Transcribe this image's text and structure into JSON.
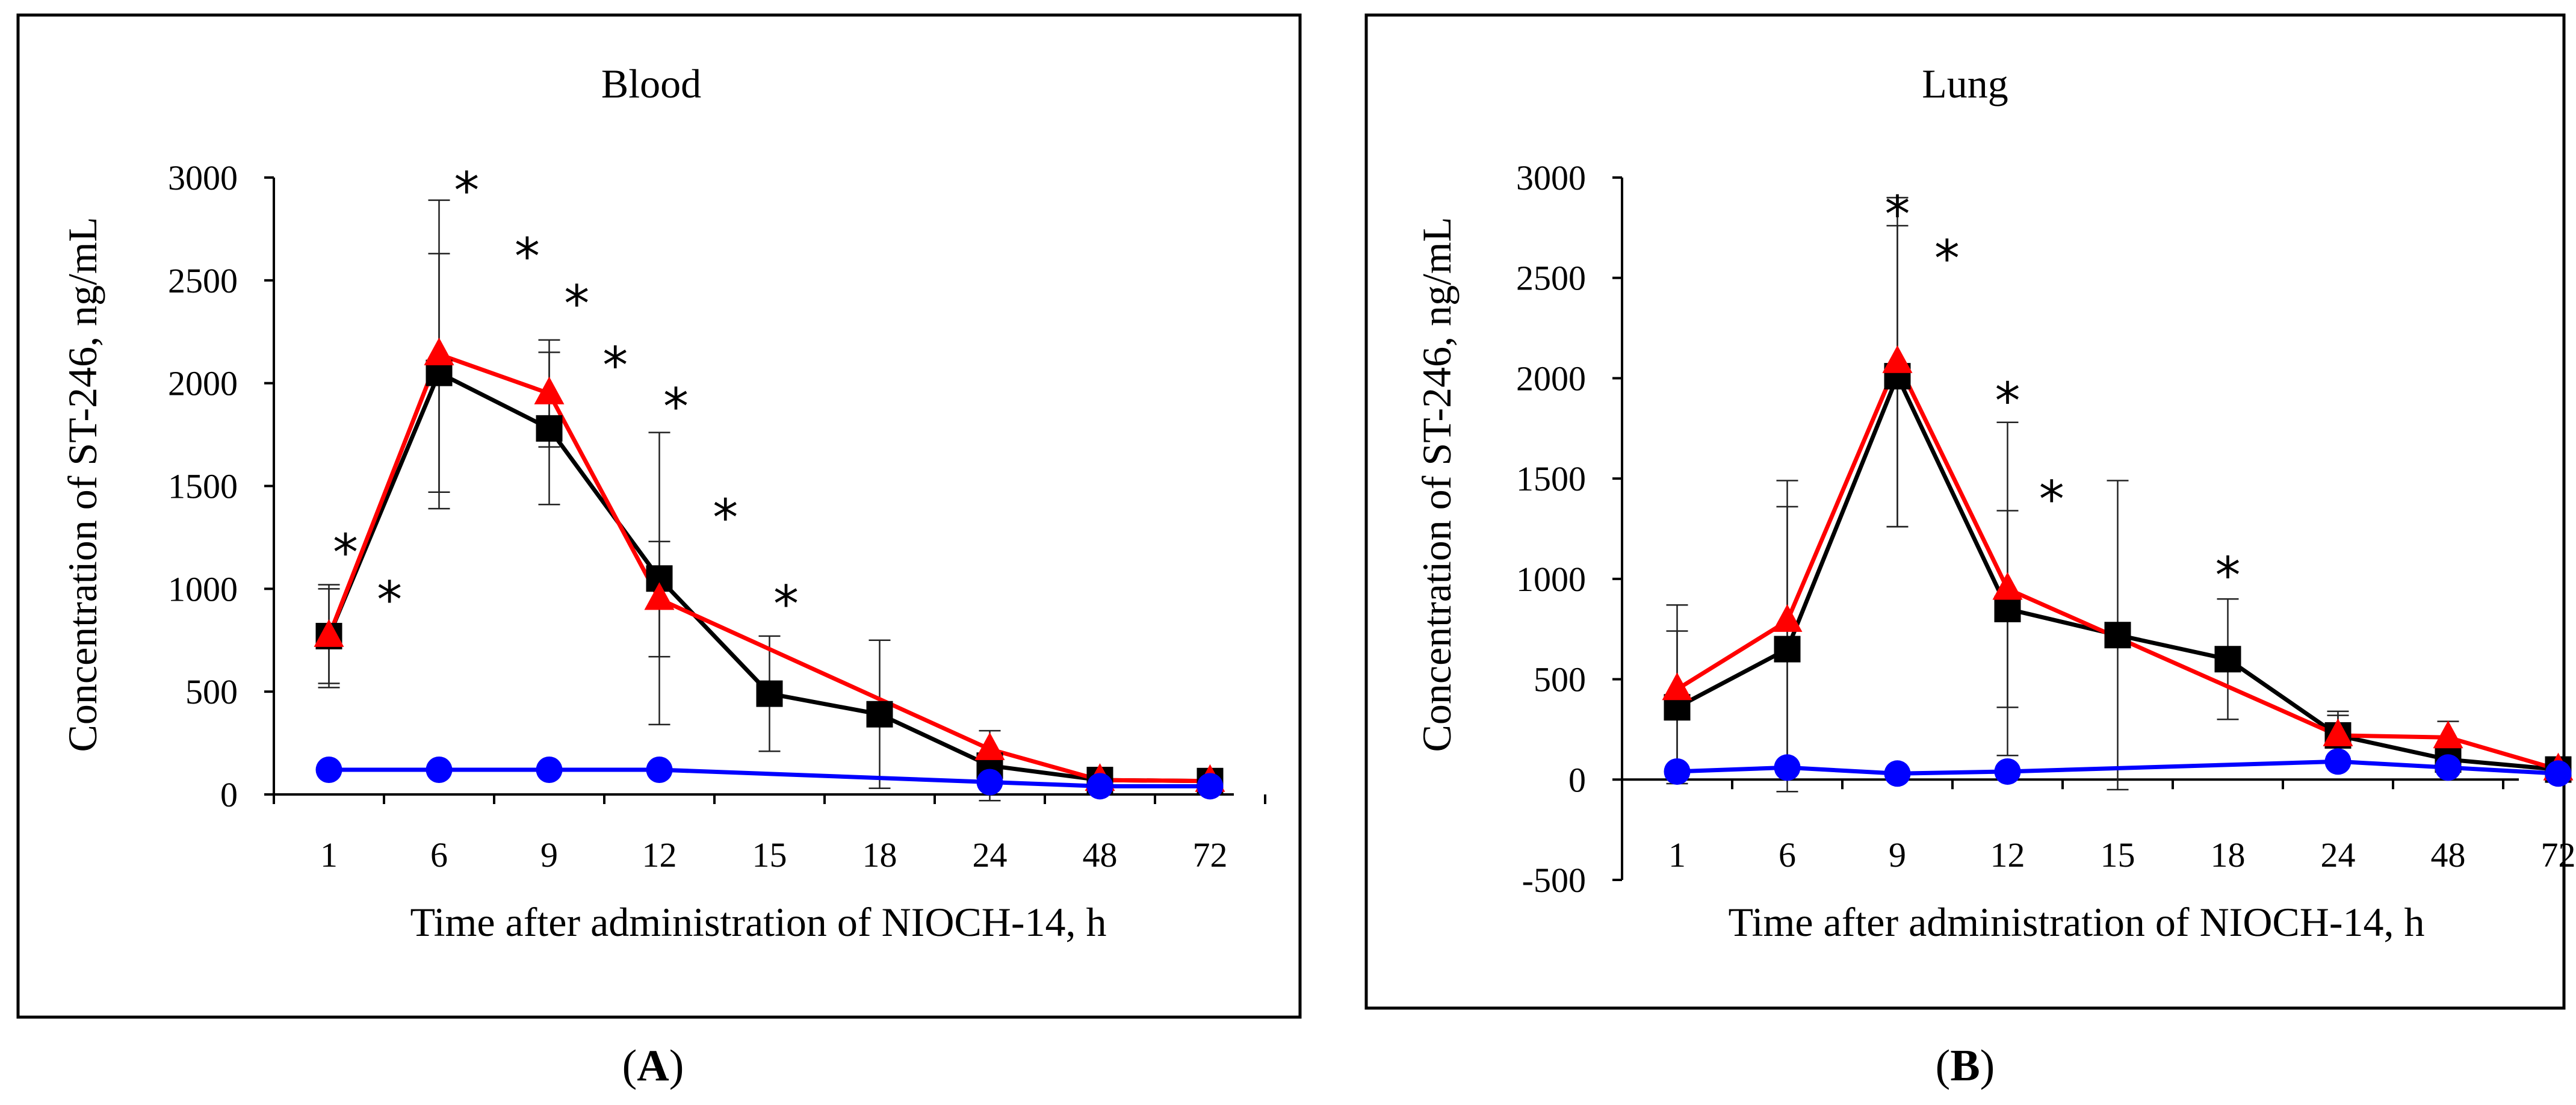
{
  "chart_data": [
    {
      "id": "A",
      "type": "line",
      "title": "Blood",
      "caption_letter": "A",
      "xlabel": "Time after administration of NIOCH-14, h",
      "ylabel": "Concentration of ST-246, ng/mL",
      "categories": [
        "1",
        "6",
        "9",
        "12",
        "15",
        "18",
        "24",
        "48",
        "72"
      ],
      "ylim": [
        0,
        3000
      ],
      "yticks": [
        0,
        500,
        1000,
        1500,
        2000,
        2500,
        3000
      ],
      "series": [
        {
          "name": "black-square",
          "color": "#000000",
          "marker": "square",
          "values": [
            770,
            2050,
            1780,
            1050,
            490,
            390,
            140,
            70,
            65
          ],
          "errors": [
            230,
            580,
            370,
            710,
            280,
            360,
            170,
            0,
            0
          ]
        },
        {
          "name": "red-triangle",
          "color": "#ff0000",
          "marker": "triangle",
          "values": [
            770,
            2140,
            1950,
            950,
            null,
            null,
            220,
            70,
            65
          ],
          "errors": [
            250,
            750,
            260,
            280,
            null,
            null,
            0,
            0,
            0
          ]
        },
        {
          "name": "blue-circle",
          "color": "#0000ff",
          "marker": "circle",
          "values": [
            120,
            120,
            120,
            120,
            null,
            null,
            60,
            40,
            40
          ],
          "errors": [
            0,
            0,
            0,
            0,
            null,
            null,
            0,
            0,
            0
          ]
        }
      ],
      "annotations": [
        {
          "text": "*",
          "x": 1.15,
          "y": 1180
        },
        {
          "text": "*",
          "x": 1.55,
          "y": 950
        },
        {
          "text": "*",
          "x": 2.25,
          "y": 2940
        },
        {
          "text": "*",
          "x": 2.8,
          "y": 2620
        },
        {
          "text": "*",
          "x": 3.25,
          "y": 2390
        },
        {
          "text": "*",
          "x": 3.6,
          "y": 2090
        },
        {
          "text": "*",
          "x": 4.15,
          "y": 1890
        },
        {
          "text": "*",
          "x": 4.6,
          "y": 1350
        },
        {
          "text": "*",
          "x": 5.15,
          "y": 930
        }
      ]
    },
    {
      "id": "B",
      "type": "line",
      "title": "Lung",
      "caption_letter": "B",
      "xlabel": "Time after administration of NIOCH-14, h",
      "ylabel": "Concentration of ST-246, ng/mL",
      "categories": [
        "1",
        "6",
        "9",
        "12",
        "15",
        "18",
        "24",
        "48",
        "72"
      ],
      "ylim": [
        -500,
        3000
      ],
      "yticks": [
        -500,
        0,
        500,
        1000,
        1500,
        2000,
        2500,
        3000
      ],
      "series": [
        {
          "name": "black-square",
          "color": "#000000",
          "marker": "square",
          "values": [
            360,
            650,
            2010,
            850,
            720,
            600,
            220,
            100,
            50
          ],
          "errors": [
            380,
            710,
            750,
            490,
            770,
            300,
            100,
            0,
            0
          ]
        },
        {
          "name": "red-triangle",
          "color": "#ff0000",
          "marker": "triangle",
          "values": [
            450,
            790,
            2080,
            950,
            null,
            null,
            220,
            210,
            50
          ],
          "errors": [
            420,
            700,
            820,
            830,
            null,
            null,
            120,
            80,
            0
          ]
        },
        {
          "name": "blue-circle",
          "color": "#0000ff",
          "marker": "circle",
          "values": [
            40,
            60,
            30,
            40,
            null,
            null,
            90,
            60,
            30
          ],
          "errors": [
            0,
            0,
            0,
            0,
            null,
            null,
            0,
            0,
            0
          ]
        }
      ],
      "annotations": [
        {
          "text": "*",
          "x": 3.0,
          "y": 2820
        },
        {
          "text": "*",
          "x": 3.45,
          "y": 2600
        },
        {
          "text": "*",
          "x": 4.0,
          "y": 1890
        },
        {
          "text": "*",
          "x": 4.4,
          "y": 1400
        },
        {
          "text": "*",
          "x": 6.0,
          "y": 1020
        }
      ]
    }
  ]
}
